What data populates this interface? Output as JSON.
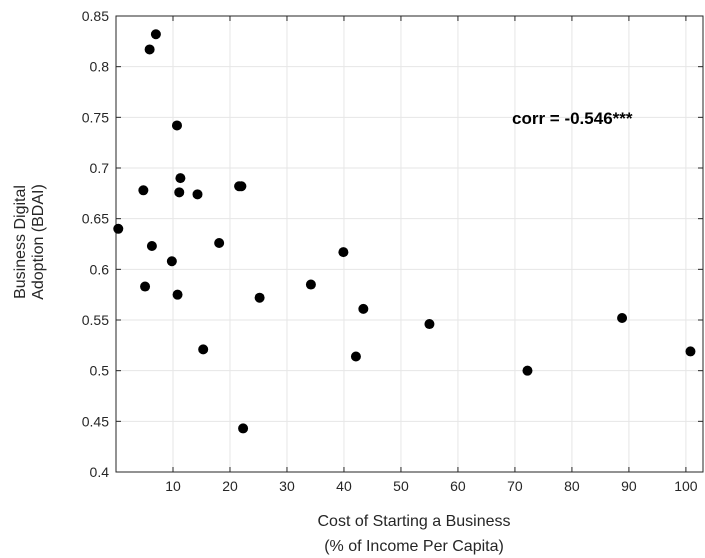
{
  "chart_data": {
    "type": "scatter",
    "title": "",
    "xlabel_lines": [
      "Cost of Starting a Business",
      "(% of Income Per Capita)"
    ],
    "ylabel_lines": [
      "Business Digital",
      "Adoption (BDAI)"
    ],
    "xlim": [
      0,
      103
    ],
    "ylim": [
      0.4,
      0.85
    ],
    "xticks": [
      10,
      20,
      30,
      40,
      50,
      60,
      70,
      80,
      90,
      100
    ],
    "yticks": [
      0.4,
      0.45,
      0.5,
      0.55,
      0.6,
      0.65,
      0.7,
      0.75,
      0.8,
      0.85
    ],
    "grid": true,
    "annotation": "corr = -0.546***",
    "marker_color": "#000000",
    "points": [
      {
        "x": 0.4,
        "y": 0.64
      },
      {
        "x": 4.8,
        "y": 0.678
      },
      {
        "x": 5.1,
        "y": 0.583
      },
      {
        "x": 5.9,
        "y": 0.817
      },
      {
        "x": 6.3,
        "y": 0.623
      },
      {
        "x": 7.0,
        "y": 0.832
      },
      {
        "x": 9.8,
        "y": 0.608
      },
      {
        "x": 10.7,
        "y": 0.742
      },
      {
        "x": 10.8,
        "y": 0.575
      },
      {
        "x": 11.1,
        "y": 0.676
      },
      {
        "x": 11.3,
        "y": 0.69
      },
      {
        "x": 14.3,
        "y": 0.674
      },
      {
        "x": 15.3,
        "y": 0.521
      },
      {
        "x": 18.1,
        "y": 0.626
      },
      {
        "x": 21.6,
        "y": 0.682
      },
      {
        "x": 22.0,
        "y": 0.682
      },
      {
        "x": 22.3,
        "y": 0.443
      },
      {
        "x": 25.2,
        "y": 0.572
      },
      {
        "x": 34.2,
        "y": 0.585
      },
      {
        "x": 39.9,
        "y": 0.617
      },
      {
        "x": 42.1,
        "y": 0.514
      },
      {
        "x": 43.4,
        "y": 0.561
      },
      {
        "x": 55.0,
        "y": 0.546
      },
      {
        "x": 72.2,
        "y": 0.5
      },
      {
        "x": 88.8,
        "y": 0.552
      },
      {
        "x": 100.8,
        "y": 0.519
      }
    ]
  }
}
